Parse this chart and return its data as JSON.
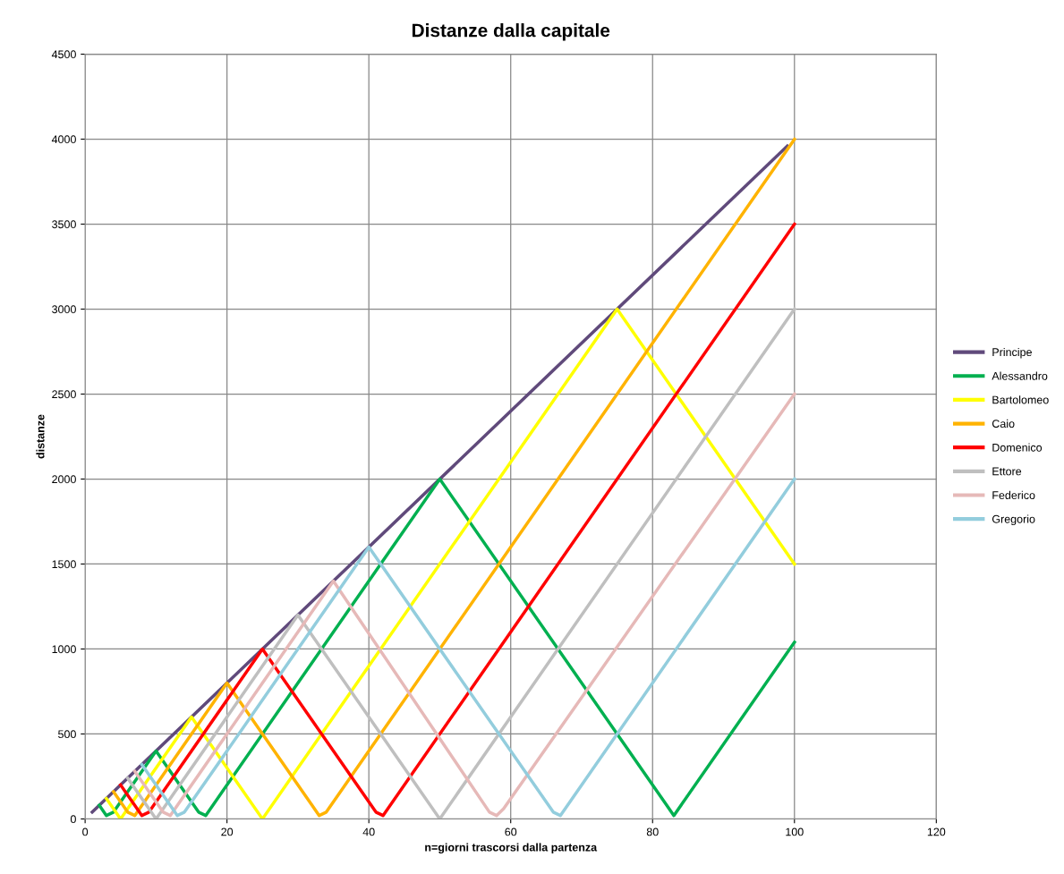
{
  "chart_data": {
    "type": "line",
    "title": "Distanze dalla capitale",
    "xlabel": "n=giorni trascorsi dalla partenza",
    "ylabel": "distanze",
    "xlim": [
      0,
      120
    ],
    "xticks": [
      0,
      20,
      40,
      60,
      80,
      100,
      120
    ],
    "ylim": [
      0,
      4500
    ],
    "yticks": [
      0,
      500,
      1000,
      1500,
      2000,
      2500,
      3000,
      3500,
      4000,
      4500
    ],
    "grid": true,
    "legend": "right",
    "marker": "none",
    "line_style": "solid",
    "series": [
      {
        "name": "Principe",
        "color": "#604a7b",
        "x": [
          1,
          99
        ],
        "values": [
          40,
          3960
        ]
      },
      {
        "name": "Alessandro",
        "color": "#00b050",
        "x": [
          2,
          3,
          4,
          10,
          16,
          17,
          50,
          82,
          83,
          100
        ],
        "values": [
          80,
          20,
          40,
          400,
          40,
          20,
          2000,
          80,
          20,
          1040
        ]
      },
      {
        "name": "Bartolomeo",
        "color": "#ffff00",
        "x": [
          3,
          5,
          15,
          25,
          75,
          100
        ],
        "values": [
          120,
          0,
          600,
          0,
          3000,
          1500
        ]
      },
      {
        "name": "Caio",
        "color": "#ffb300",
        "x": [
          4,
          6,
          7,
          20,
          32,
          33,
          34,
          100
        ],
        "values": [
          160,
          40,
          20,
          800,
          80,
          20,
          40,
          4000
        ]
      },
      {
        "name": "Domenico",
        "color": "#ff0000",
        "x": [
          5,
          7,
          8,
          9,
          25,
          41,
          42,
          100
        ],
        "values": [
          200,
          80,
          20,
          40,
          1000,
          40,
          20,
          3500
        ]
      },
      {
        "name": "Ettore",
        "color": "#bfbfbf",
        "x": [
          6,
          10,
          30,
          50,
          100
        ],
        "values": [
          240,
          0,
          1200,
          0,
          3000
        ]
      },
      {
        "name": "Federico",
        "color": "#e6b9b8",
        "x": [
          7,
          11,
          12,
          35,
          57,
          58,
          59,
          100
        ],
        "values": [
          280,
          40,
          20,
          1400,
          40,
          20,
          60,
          2500
        ]
      },
      {
        "name": "Gregorio",
        "color": "#93cddd",
        "x": [
          8,
          12,
          13,
          14,
          40,
          66,
          67,
          100
        ],
        "values": [
          320,
          80,
          20,
          40,
          1600,
          40,
          20,
          2000
        ]
      }
    ]
  }
}
